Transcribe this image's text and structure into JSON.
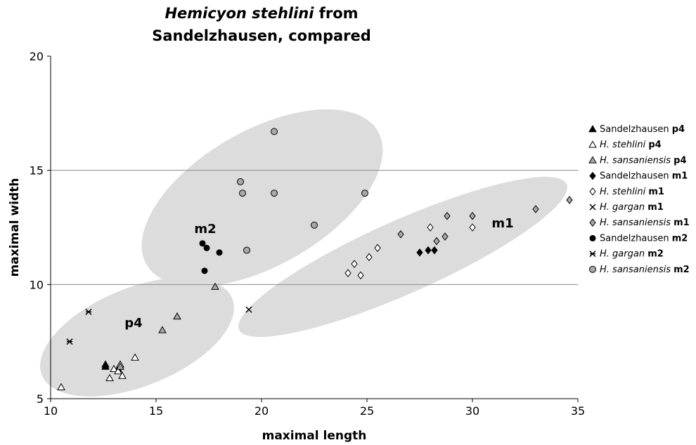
{
  "chart_data": {
    "type": "scatter",
    "title_italic": "Hemicyon stehlini",
    "title_line1_rest": " from",
    "title_line2": "Sandelzhausen, compared",
    "xlabel": "maximal length",
    "ylabel": "maximal width",
    "xlim": [
      10,
      35
    ],
    "ylim": [
      5,
      20
    ],
    "xticks": [
      "10",
      "15",
      "20",
      "25",
      "30",
      "35"
    ],
    "yticks": [
      "5",
      "10",
      "15",
      "20"
    ],
    "grid": "horizontal lines at 10 and 15",
    "legend_position": "right",
    "regions": [
      {
        "label": "m2",
        "color": "#dcdcdc"
      },
      {
        "label": "m1",
        "color": "#dcdcdc"
      },
      {
        "label": "p4",
        "color": "#dcdcdc"
      }
    ],
    "series": [
      {
        "name_plain": "Sandelzhausen",
        "name_italic": "",
        "tooth": "p4",
        "marker": "triangle-filled",
        "points": [
          [
            12.6,
            6.5
          ],
          [
            12.6,
            6.4
          ],
          [
            13.2,
            6.3
          ]
        ]
      },
      {
        "name_plain": "",
        "name_italic": "H. stehlini",
        "tooth": "p4",
        "marker": "triangle-open",
        "points": [
          [
            10.5,
            5.5
          ],
          [
            12.8,
            5.9
          ],
          [
            13.0,
            6.3
          ],
          [
            13.2,
            6.2
          ],
          [
            13.3,
            6.5
          ],
          [
            13.4,
            6.0
          ],
          [
            14.0,
            6.8
          ]
        ]
      },
      {
        "name_plain": "",
        "name_italic": "H. sansaniensis",
        "tooth": "p4",
        "marker": "triangle-gray",
        "points": [
          [
            13.3,
            6.4
          ],
          [
            15.3,
            8.0
          ],
          [
            16.0,
            8.6
          ],
          [
            17.8,
            9.9
          ]
        ]
      },
      {
        "name_plain": "Sandelzhausen",
        "name_italic": "",
        "tooth": "m1",
        "marker": "diamond-filled",
        "points": [
          [
            27.5,
            11.4
          ],
          [
            27.9,
            11.5
          ],
          [
            28.2,
            11.5
          ]
        ]
      },
      {
        "name_plain": "",
        "name_italic": "H. stehlini",
        "tooth": "m1",
        "marker": "diamond-open",
        "points": [
          [
            24.1,
            10.5
          ],
          [
            24.4,
            10.9
          ],
          [
            24.7,
            10.4
          ],
          [
            25.1,
            11.2
          ],
          [
            25.5,
            11.6
          ],
          [
            28.0,
            12.5
          ],
          [
            30.0,
            12.5
          ]
        ]
      },
      {
        "name_plain": "",
        "name_italic": "H. gargan",
        "tooth": "m1",
        "marker": "x",
        "points": [
          [
            19.4,
            8.9
          ]
        ]
      },
      {
        "name_plain": "",
        "name_italic": "H. sansaniensis",
        "tooth": "m1",
        "marker": "diamond-gray",
        "points": [
          [
            26.6,
            12.2
          ],
          [
            28.3,
            11.9
          ],
          [
            28.7,
            12.1
          ],
          [
            28.8,
            13.0
          ],
          [
            30.0,
            13.0
          ],
          [
            33.0,
            13.3
          ],
          [
            34.6,
            13.7
          ]
        ]
      },
      {
        "name_plain": "Sandelzhausen",
        "name_italic": "",
        "tooth": "m2",
        "marker": "circle-filled",
        "points": [
          [
            17.2,
            11.8
          ],
          [
            17.4,
            11.6
          ],
          [
            18.0,
            11.4
          ],
          [
            17.3,
            10.6
          ]
        ]
      },
      {
        "name_plain": "",
        "name_italic": "H. gargan",
        "tooth": "m2",
        "marker": "star-x",
        "points": [
          [
            11.8,
            8.8
          ],
          [
            10.9,
            7.5
          ]
        ]
      },
      {
        "name_plain": "",
        "name_italic": "H. sansaniensis",
        "tooth": "m2",
        "marker": "circle-gray",
        "points": [
          [
            19.0,
            14.5
          ],
          [
            19.1,
            14.0
          ],
          [
            20.6,
            16.7
          ],
          [
            20.6,
            14.0
          ],
          [
            22.5,
            12.6
          ],
          [
            24.9,
            14.0
          ],
          [
            19.3,
            11.5
          ]
        ]
      }
    ]
  },
  "colors": {
    "region_fill": "#dcdcdc",
    "marker_gray": "#a8a8a8",
    "gridline": "#8c8c8c"
  }
}
